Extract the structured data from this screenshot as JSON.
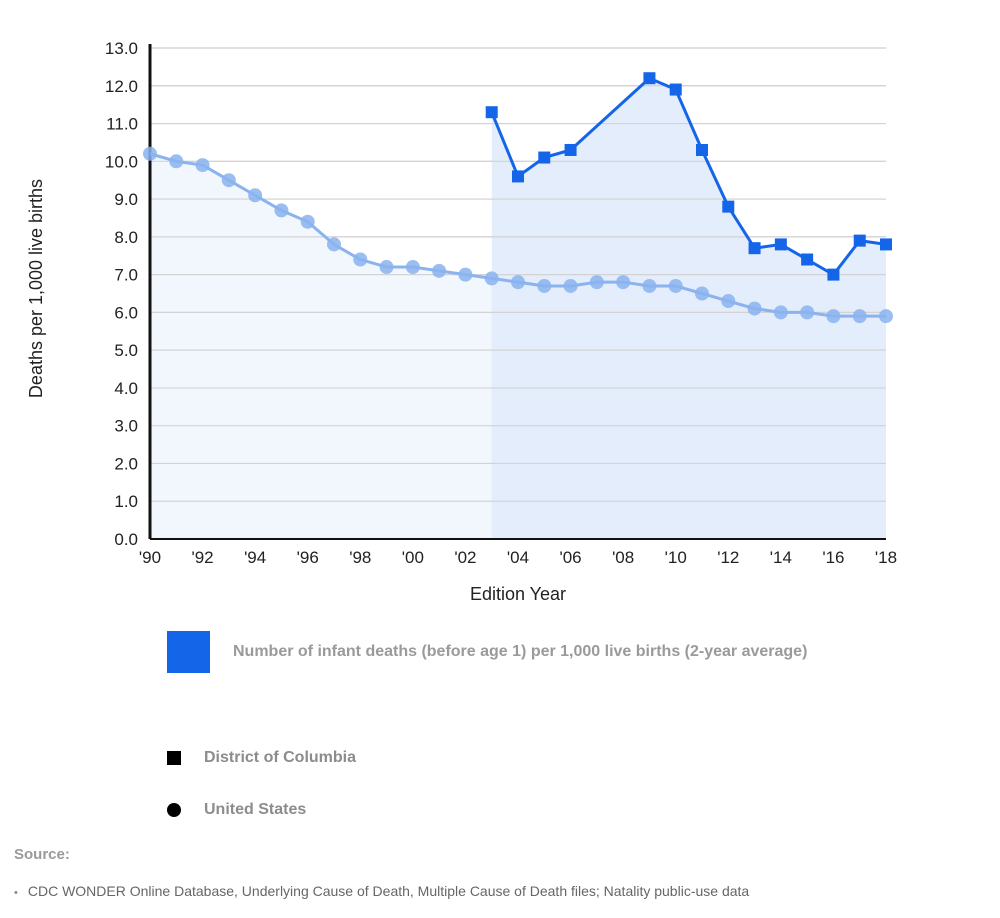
{
  "chart_data": {
    "type": "line",
    "ylabel": "Deaths per 1,000 live births",
    "xlabel": "Edition Year",
    "ylim": [
      0,
      13
    ],
    "xlim": [
      1990,
      2018
    ],
    "yticks": [
      "0.0",
      "1.0",
      "2.0",
      "3.0",
      "4.0",
      "5.0",
      "6.0",
      "7.0",
      "8.0",
      "9.0",
      "10.0",
      "11.0",
      "12.0",
      "13.0"
    ],
    "xticks": [
      {
        "x": 1990,
        "label": "'90"
      },
      {
        "x": 1992,
        "label": "'92"
      },
      {
        "x": 1994,
        "label": "'94"
      },
      {
        "x": 1996,
        "label": "'96"
      },
      {
        "x": 1998,
        "label": "'98"
      },
      {
        "x": 2000,
        "label": "'00"
      },
      {
        "x": 2002,
        "label": "'02"
      },
      {
        "x": 2004,
        "label": "'04"
      },
      {
        "x": 2006,
        "label": "'06"
      },
      {
        "x": 2008,
        "label": "'08"
      },
      {
        "x": 2010,
        "label": "'10"
      },
      {
        "x": 2012,
        "label": "'12"
      },
      {
        "x": 2014,
        "label": "'14"
      },
      {
        "x": 2016,
        "label": "'16"
      },
      {
        "x": 2018,
        "label": "'18"
      }
    ],
    "grid": true,
    "series": [
      {
        "name": "District of Columbia",
        "marker": "square",
        "color": "#1565e8",
        "fill": "#e3edfb",
        "x": [
          2003,
          2004,
          2005,
          2006,
          2009,
          2010,
          2011,
          2012,
          2013,
          2014,
          2015,
          2016,
          2017,
          2018
        ],
        "values": [
          11.3,
          9.6,
          10.1,
          10.3,
          12.2,
          11.9,
          10.3,
          8.8,
          7.7,
          7.8,
          7.4,
          7.0,
          7.9,
          7.8
        ]
      },
      {
        "name": "United States",
        "marker": "circle",
        "color": "#8ab3ef",
        "fill": "#f2f6fd",
        "x": [
          1990,
          1991,
          1992,
          1993,
          1994,
          1995,
          1996,
          1997,
          1998,
          1999,
          2000,
          2001,
          2002,
          2003,
          2004,
          2005,
          2006,
          2007,
          2008,
          2009,
          2010,
          2011,
          2012,
          2013,
          2014,
          2015,
          2016,
          2017,
          2018
        ],
        "values": [
          10.2,
          10.0,
          9.9,
          9.5,
          9.1,
          8.7,
          8.4,
          7.8,
          7.4,
          7.2,
          7.2,
          7.1,
          7.0,
          6.9,
          6.8,
          6.7,
          6.7,
          6.8,
          6.8,
          6.7,
          6.7,
          6.5,
          6.3,
          6.1,
          6.0,
          6.0,
          5.9,
          5.9,
          5.9
        ]
      }
    ]
  },
  "legend": {
    "measure_label": "Number of infant deaths (before age 1) per 1,000 live births (2-year average)",
    "measure_color": "#1565e8",
    "keys": [
      {
        "label": "District of Columbia",
        "marker": "square"
      },
      {
        "label": "United States",
        "marker": "circle"
      }
    ]
  },
  "source": {
    "title": "Source:",
    "items": [
      "CDC WONDER Online Database, Underlying Cause of Death, Multiple Cause of Death files; Natality public-use data"
    ]
  }
}
